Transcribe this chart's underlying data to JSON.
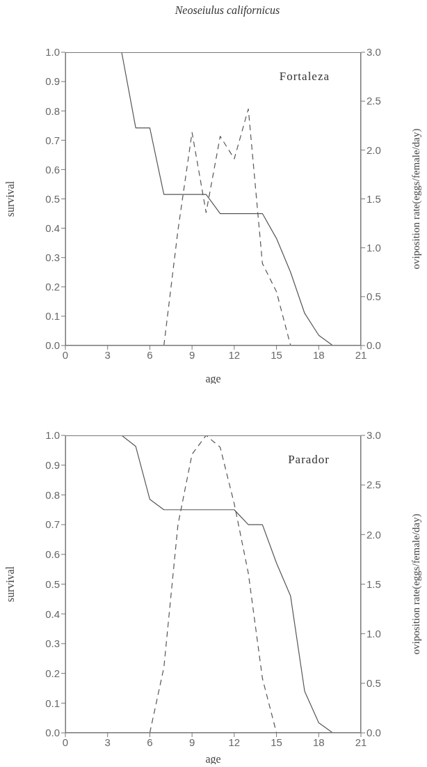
{
  "chart_data": [
    {
      "type": "line",
      "title": "Neoseiulus californicus",
      "xlabel": "age",
      "ylabel": "survival",
      "y2label": "oviposition rate(eggs/female/day)",
      "annotations": [
        "Fortaleza"
      ],
      "xlim": [
        0,
        21
      ],
      "xticks": [
        0,
        3,
        6,
        9,
        12,
        15,
        18,
        21
      ],
      "ylim": [
        0,
        1
      ],
      "yticks": [
        {
          "value": 0,
          "label": "0.0"
        },
        {
          "value": 0.1,
          "label": "0.1"
        },
        {
          "value": 0.2,
          "label": "0.2"
        },
        {
          "value": 0.3,
          "label": "0.3"
        },
        {
          "value": 0.4,
          "label": "0.4"
        },
        {
          "value": 0.5,
          "label": "0.5"
        },
        {
          "value": 0.6,
          "label": "0.6"
        },
        {
          "value": 0.7,
          "label": "0.7"
        },
        {
          "value": 0.8,
          "label": "0.8"
        },
        {
          "value": 0.9,
          "label": "0.9"
        },
        {
          "value": 1,
          "label": "1.0"
        }
      ],
      "y2lim": [
        0,
        3
      ],
      "y2ticks": [
        {
          "value": 0,
          "label": "0.0"
        },
        {
          "value": 0.5,
          "label": "0.5"
        },
        {
          "value": 1,
          "label": "1.0"
        },
        {
          "value": 1.5,
          "label": "1.5"
        },
        {
          "value": 2,
          "label": "2.0"
        },
        {
          "value": 2.5,
          "label": "2.5"
        },
        {
          "value": 3,
          "label": "3.0"
        }
      ],
      "marker": "none",
      "grid": false,
      "legend": false,
      "series": [
        {
          "color": "#555555",
          "line_style": "solid",
          "x": [
            4,
            5,
            6,
            7,
            8,
            9,
            10,
            11,
            12,
            13,
            14,
            15,
            16,
            17,
            18,
            19,
            20,
            21
          ],
          "values": [
            1.0,
            0.742,
            0.742,
            0.515,
            0.515,
            0.515,
            0.515,
            0.45,
            0.45,
            0.45,
            0.45,
            0.365,
            0.25,
            0.11,
            0.035,
            0,
            0,
            0
          ]
        },
        {
          "color": "#555555",
          "line_style": "dashed",
          "axis": "y2",
          "x": [
            7,
            8,
            9,
            10,
            11,
            12,
            13,
            14,
            15,
            16
          ],
          "values": [
            0,
            1.18,
            2.18,
            1.36,
            2.14,
            1.91,
            2.42,
            0.84,
            0.55,
            0
          ]
        }
      ]
    },
    {
      "type": "line",
      "xlabel": "age",
      "ylabel": "survival",
      "y2label": "oviposition rate(eggs/female/day)",
      "annotations": [
        "Parador"
      ],
      "xlim": [
        0,
        21
      ],
      "xticks": [
        0,
        3,
        6,
        9,
        12,
        15,
        18,
        21
      ],
      "ylim": [
        0,
        1
      ],
      "yticks": [
        {
          "value": 0,
          "label": "0.0"
        },
        {
          "value": 0.1,
          "label": "0.1"
        },
        {
          "value": 0.2,
          "label": "0.2"
        },
        {
          "value": 0.3,
          "label": "0.3"
        },
        {
          "value": 0.4,
          "label": "0.4"
        },
        {
          "value": 0.5,
          "label": "0.5"
        },
        {
          "value": 0.6,
          "label": "0.6"
        },
        {
          "value": 0.7,
          "label": "0.7"
        },
        {
          "value": 0.8,
          "label": "0.8"
        },
        {
          "value": 0.9,
          "label": "0.9"
        },
        {
          "value": 1,
          "label": "1.0"
        }
      ],
      "y2lim": [
        0,
        3
      ],
      "y2ticks": [
        {
          "value": 0,
          "label": "0.0"
        },
        {
          "value": 0.5,
          "label": "0.5"
        },
        {
          "value": 1,
          "label": "1.0"
        },
        {
          "value": 1.5,
          "label": "1.5"
        },
        {
          "value": 2,
          "label": "2.0"
        },
        {
          "value": 2.5,
          "label": "2.5"
        },
        {
          "value": 3,
          "label": "3.0"
        }
      ],
      "marker": "none",
      "grid": false,
      "legend": false,
      "series": [
        {
          "color": "#555555",
          "line_style": "solid",
          "x": [
            4,
            5,
            6,
            7,
            8,
            9,
            10,
            11,
            12,
            13,
            14,
            15,
            16,
            17,
            18,
            19,
            20
          ],
          "values": [
            1.0,
            0.963,
            0.785,
            0.75,
            0.75,
            0.75,
            0.75,
            0.75,
            0.75,
            0.7,
            0.7,
            0.571,
            0.46,
            0.14,
            0.034,
            0,
            0
          ]
        },
        {
          "color": "#555555",
          "line_style": "dashed",
          "axis": "y2",
          "x": [
            6,
            7,
            8,
            9,
            10,
            11,
            12,
            13,
            14,
            15
          ],
          "values": [
            0,
            0.66,
            2.1,
            2.81,
            3.0,
            2.88,
            2.31,
            1.61,
            0.55,
            0
          ]
        }
      ]
    }
  ]
}
